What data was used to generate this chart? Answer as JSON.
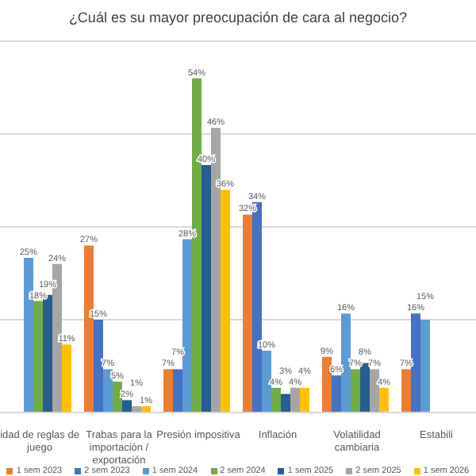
{
  "chart_data": {
    "type": "bar",
    "title": "¿Cuál es su mayor preocupación de cara al negocio?",
    "categories": [
      "idad de reglas de juego",
      "Trabas para la importación / exportación",
      "Presión impositiva",
      "Inflación",
      "Volatilidad cambiaria",
      "Estabili"
    ],
    "series": [
      {
        "name": "1 sem 2023",
        "color": "#ed7d31",
        "values": [
          null,
          27,
          7,
          32,
          9,
          7
        ],
        "value_labels": [
          null,
          "27%",
          "7%",
          "32%",
          "9%",
          "7%"
        ]
      },
      {
        "name": "2 sem 2023",
        "color": "#4472c4",
        "values": [
          null,
          15,
          7,
          34,
          6,
          16
        ],
        "value_labels": [
          null,
          "15%",
          "7%",
          "34%",
          "6%",
          "16%"
        ]
      },
      {
        "name": "1 sem 2024",
        "color": "#5b9bd5",
        "values": [
          25,
          7,
          28,
          10,
          16,
          15
        ],
        "value_labels": [
          "25%",
          "7%",
          "28%",
          "10%",
          "16%",
          "15%"
        ]
      },
      {
        "name": "2 sem 2024",
        "color": "#70ad47",
        "values": [
          18,
          5,
          54,
          4,
          7,
          null
        ],
        "value_labels": [
          "18%",
          "5%",
          "54%",
          "4%",
          "7%",
          null
        ]
      },
      {
        "name": "1 sem 2025",
        "color": "#255e91",
        "values": [
          19,
          2,
          40,
          3,
          8,
          null
        ],
        "value_labels": [
          "19%",
          "2%",
          "40%",
          "3%",
          "8%",
          null
        ]
      },
      {
        "name": "2 sem 2025",
        "color": "#a5a5a5",
        "values": [
          24,
          1,
          46,
          4,
          7,
          null
        ],
        "value_labels": [
          "24%",
          "1%",
          "46%",
          "4%",
          "7%",
          null
        ]
      },
      {
        "name": "1 sem 2026",
        "color": "#ffc000",
        "values": [
          11,
          1,
          36,
          4,
          4,
          null
        ],
        "value_labels": [
          "11%",
          "1%",
          "36%",
          "4%",
          "4%",
          null
        ]
      }
    ],
    "tick_labels": "x",
    "grid": "y",
    "legend": "bottom"
  }
}
